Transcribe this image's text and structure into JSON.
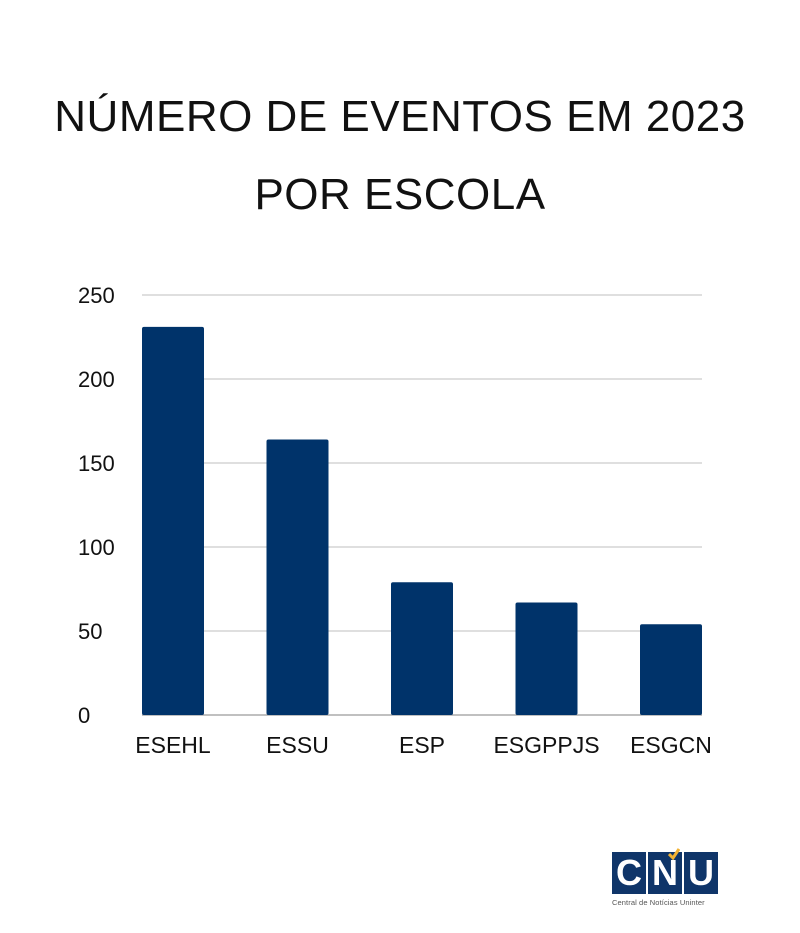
{
  "title_line1": "NÚMERO DE EVENTOS EM 2023",
  "title_line2": "POR ESCOLA",
  "chart_data": {
    "type": "bar",
    "title": "NÚMERO DE EVENTOS EM 2023 POR ESCOLA",
    "categories": [
      "ESEHL",
      "ESSU",
      "ESP",
      "ESGPPJS",
      "ESGCN"
    ],
    "values": [
      231,
      164,
      79,
      67,
      54
    ],
    "ylim": [
      0,
      250
    ],
    "yticks": [
      0,
      50,
      100,
      150,
      200,
      250
    ],
    "grid": true,
    "legend": "none",
    "bar_color": "#00336a",
    "grid_color": "#cccccc"
  },
  "logo": {
    "letters": [
      "C",
      "N",
      "U"
    ],
    "tagline": "Central de Notícias Uninter",
    "accent_color": "#f2b233",
    "brand_color": "#0f3569"
  }
}
